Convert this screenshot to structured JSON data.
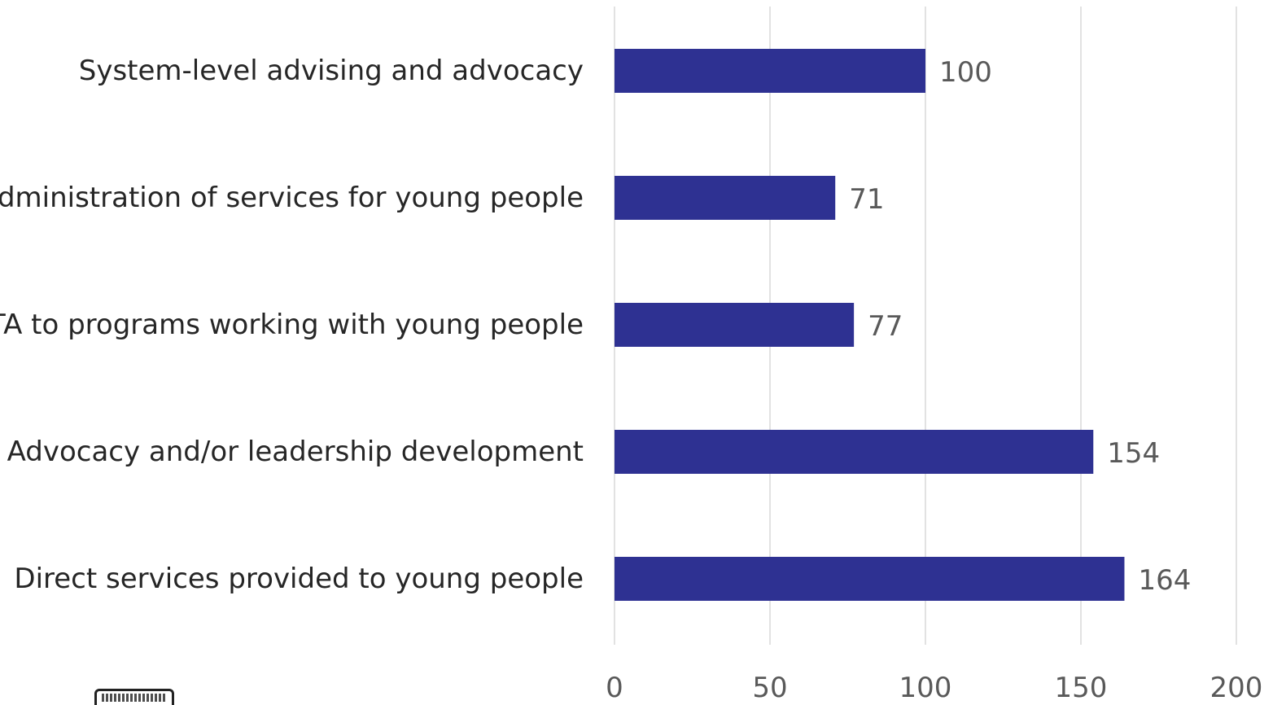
{
  "chart_data": {
    "type": "bar",
    "orientation": "horizontal",
    "categories": [
      "System-level advising and advocacy",
      "Administration of services for young people",
      "TA to programs working with young people",
      "Advocacy and/or leadership development",
      "Direct services provided to young people"
    ],
    "values": [
      100,
      71,
      77,
      154,
      164
    ],
    "x_ticks": [
      "0",
      "50",
      "100",
      "150",
      "200"
    ],
    "xlim": [
      0,
      200
    ],
    "grid": true,
    "data_labels": true,
    "title": "",
    "xlabel": "",
    "ylabel": ""
  },
  "colors": {
    "bar": "#2e3192",
    "grid": "#d9d9d9",
    "category_text": "#262626",
    "value_text": "#595959"
  },
  "logo": {
    "icon": "youth-badge-logo",
    "text": "YOUTH"
  }
}
